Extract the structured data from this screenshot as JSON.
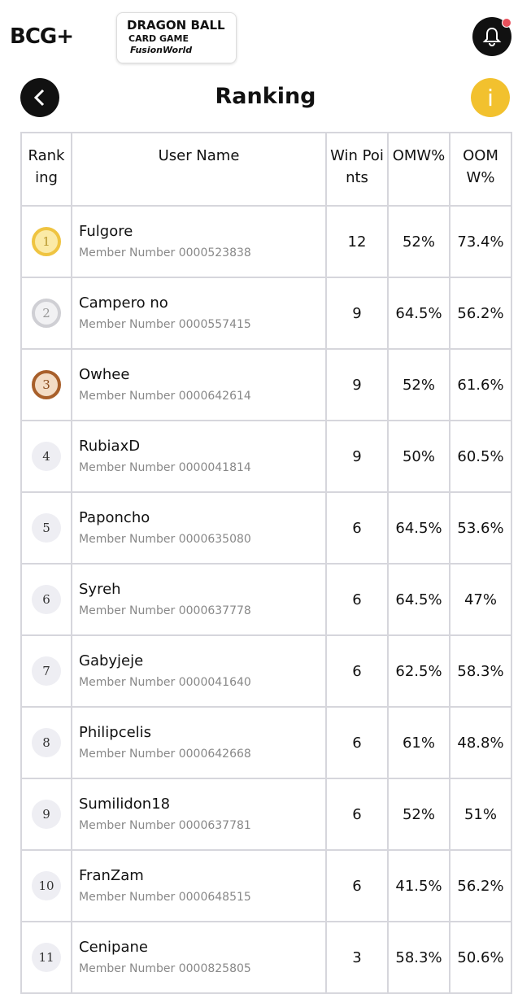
{
  "header": {
    "logo": "BCG+",
    "game_logo": {
      "line1": "DRAGON BALL",
      "line2": "CARD GAME",
      "line3": "FusionWorld"
    },
    "title": "Ranking",
    "info": "i"
  },
  "table": {
    "columns": [
      "Ranking",
      "User Name",
      "Win Points",
      "OMW%",
      "OOMW%"
    ],
    "rows": [
      {
        "rank": 1,
        "name": "Fulgore",
        "member": "Member Number 0000523838",
        "win_points": 12,
        "omw": "52%",
        "oomw": "73.4%"
      },
      {
        "rank": 2,
        "name": "Campero no",
        "member": "Member Number 0000557415",
        "win_points": 9,
        "omw": "64.5%",
        "oomw": "56.2%"
      },
      {
        "rank": 3,
        "name": "Owhee",
        "member": "Member Number 0000642614",
        "win_points": 9,
        "omw": "52%",
        "oomw": "61.6%"
      },
      {
        "rank": 4,
        "name": "RubiaxD",
        "member": "Member Number 0000041814",
        "win_points": 9,
        "omw": "50%",
        "oomw": "60.5%"
      },
      {
        "rank": 5,
        "name": "Paponcho",
        "member": "Member Number 0000635080",
        "win_points": 6,
        "omw": "64.5%",
        "oomw": "53.6%"
      },
      {
        "rank": 6,
        "name": "Syreh",
        "member": "Member Number 0000637778",
        "win_points": 6,
        "omw": "64.5%",
        "oomw": "47%"
      },
      {
        "rank": 7,
        "name": "Gabyjeje",
        "member": "Member Number 0000041640",
        "win_points": 6,
        "omw": "62.5%",
        "oomw": "58.3%"
      },
      {
        "rank": 8,
        "name": "Philipcelis",
        "member": "Member Number 0000642668",
        "win_points": 6,
        "omw": "61%",
        "oomw": "48.8%"
      },
      {
        "rank": 9,
        "name": "Sumilidon18",
        "member": "Member Number 0000637781",
        "win_points": 6,
        "omw": "52%",
        "oomw": "51%"
      },
      {
        "rank": 10,
        "name": "FranZam",
        "member": "Member Number 0000648515",
        "win_points": 6,
        "omw": "41.5%",
        "oomw": "56.2%"
      },
      {
        "rank": 11,
        "name": "Cenipane",
        "member": "Member Number 0000825805",
        "win_points": 3,
        "omw": "58.3%",
        "oomw": "50.6%"
      }
    ]
  }
}
